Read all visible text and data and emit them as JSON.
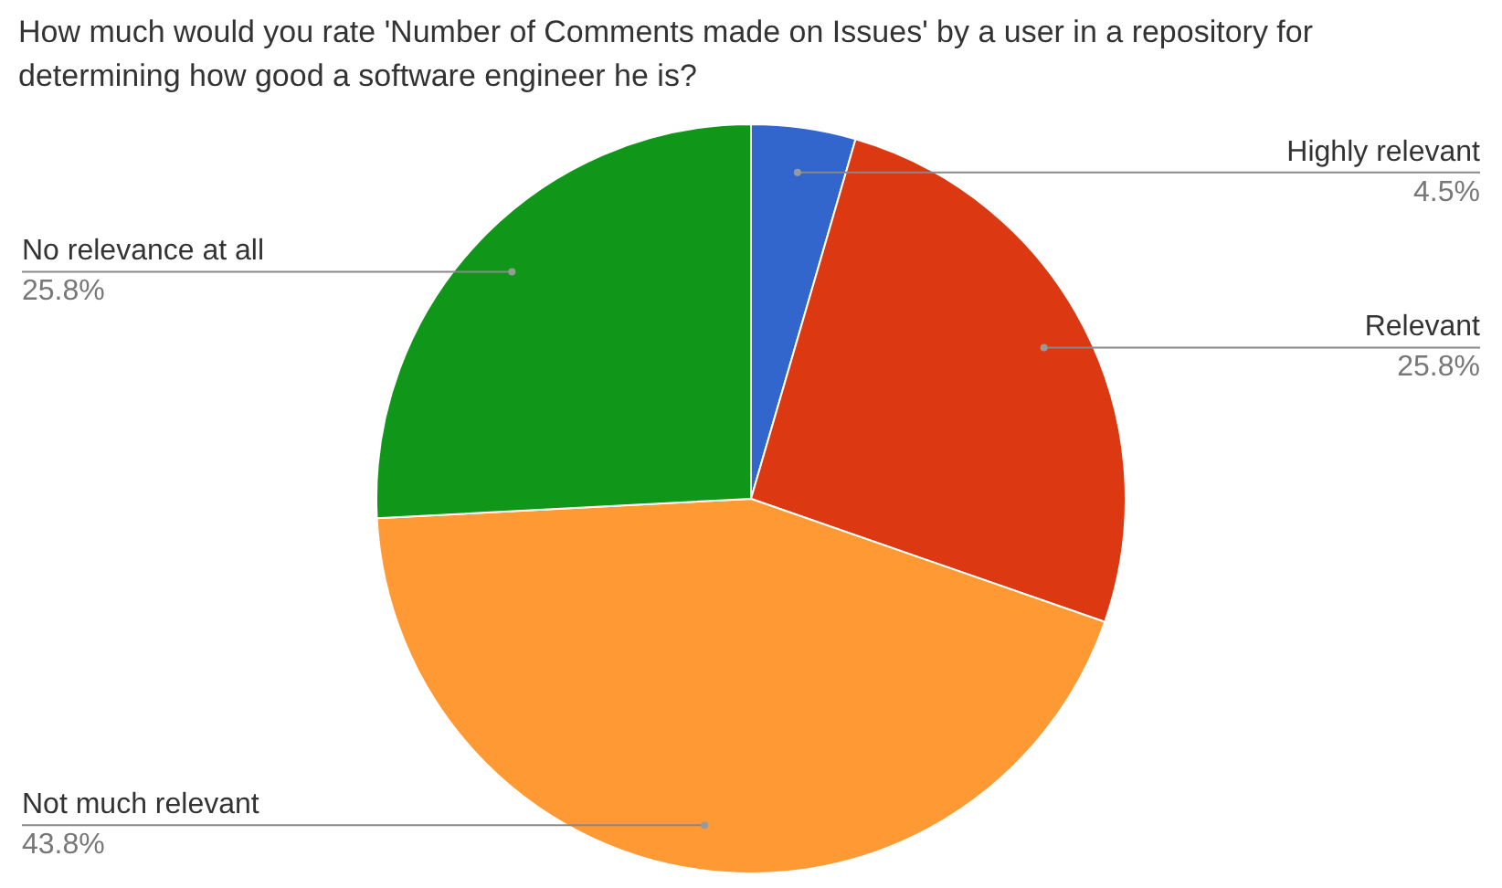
{
  "chart_data": {
    "type": "pie",
    "title": "How much would you rate 'Number of Comments made on Issues' by a user in a repository for determining how good a software engineer he is?",
    "categories": [
      "Highly relevant",
      "Relevant",
      "Not much relevant",
      "No relevance at all"
    ],
    "values": [
      4.5,
      25.8,
      43.8,
      25.8
    ],
    "colors": [
      "#3366cc",
      "#dc3912",
      "#ff9933",
      "#109618"
    ],
    "value_labels": [
      "4.5%",
      "25.8%",
      "43.8%",
      "25.8%"
    ],
    "legend": false
  }
}
